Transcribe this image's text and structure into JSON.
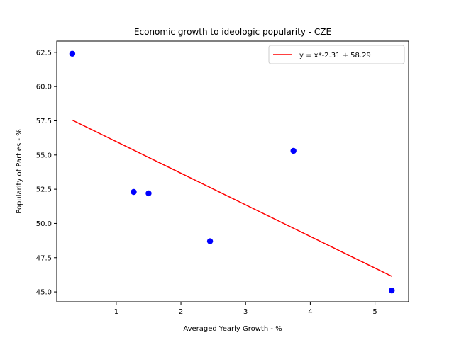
{
  "chart_data": {
    "type": "scatter",
    "title": "Economic growth to ideologic popularity - CZE",
    "xlabel": "Averaged Yearly Growth - %",
    "ylabel": "Popularity of Parties - %",
    "xlim": [
      0.08,
      5.52
    ],
    "ylim": [
      44.28,
      63.32
    ],
    "xticks": [
      1,
      2,
      3,
      4,
      5
    ],
    "xtick_labels": [
      "1",
      "2",
      "3",
      "4",
      "5"
    ],
    "yticks": [
      45.0,
      47.5,
      50.0,
      52.5,
      55.0,
      57.5,
      60.0,
      62.5
    ],
    "ytick_labels": [
      "45.0",
      "47.5",
      "50.0",
      "52.5",
      "55.0",
      "57.5",
      "60.0",
      "62.5"
    ],
    "grid": false,
    "series": [
      {
        "kind": "scatter",
        "color": "#0000ff",
        "x": [
          0.32,
          1.27,
          1.5,
          2.45,
          3.74,
          5.26
        ],
        "y": [
          62.4,
          52.3,
          52.2,
          48.7,
          55.3,
          45.1
        ]
      },
      {
        "kind": "line",
        "name": "y = x*-2.31 + 58.29",
        "color": "#ff0000",
        "slope": -2.31,
        "intercept": 58.29,
        "x_range": [
          0.32,
          5.26
        ]
      }
    ],
    "legend": {
      "position": "top-right",
      "entries": [
        "y = x*-2.31 + 58.29"
      ]
    }
  }
}
